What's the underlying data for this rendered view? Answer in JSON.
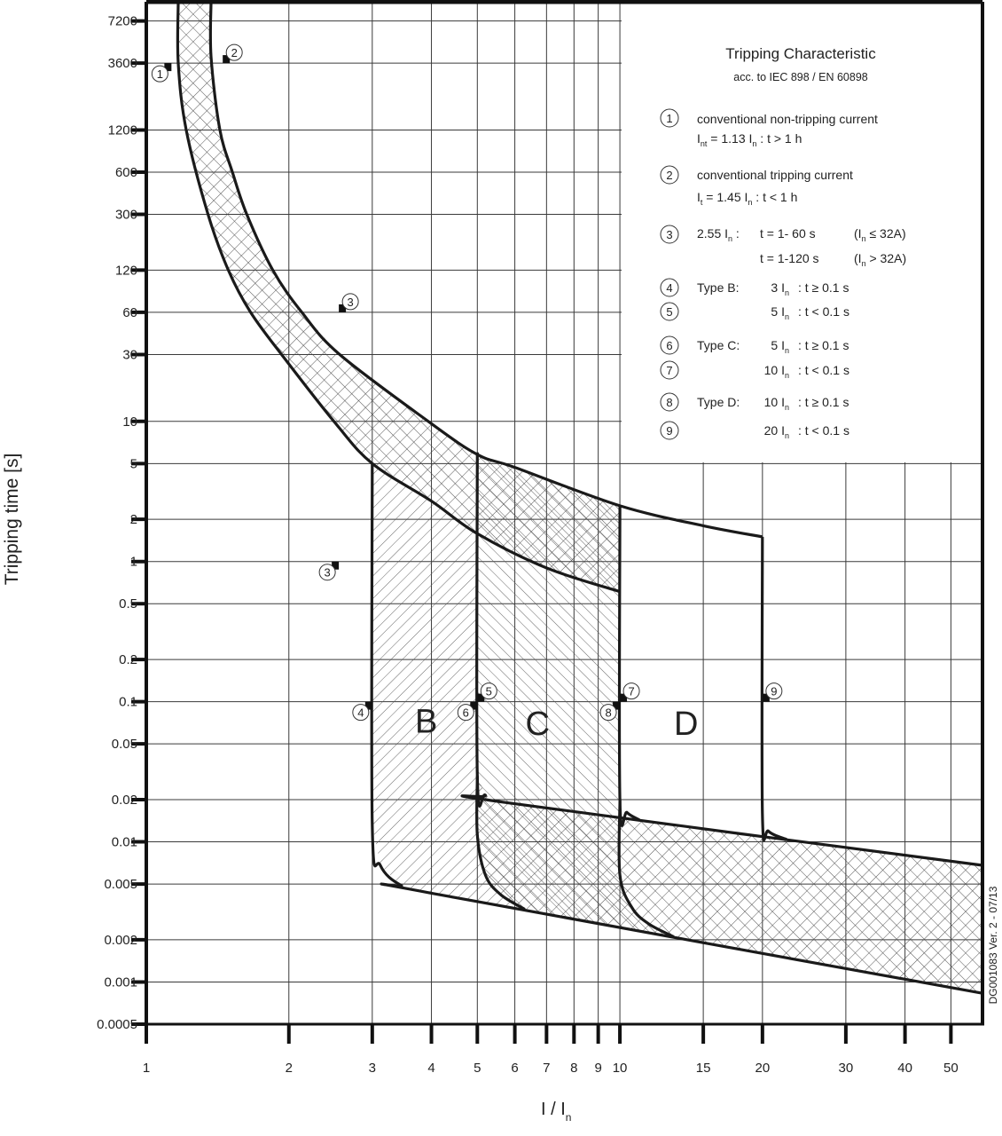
{
  "chart_data": {
    "type": "line",
    "xlabel": "I / I",
    "xlabel_sub": "n",
    "ylabel": "Tripping time [s]",
    "xscale": "log",
    "yscale": "log",
    "xlim": [
      1,
      58.3
    ],
    "ylim": [
      0.0005,
      9860
    ],
    "grid": true,
    "xticks": [
      {
        "v": 1,
        "label": "1"
      },
      {
        "v": 2,
        "label": "2"
      },
      {
        "v": 3,
        "label": "3"
      },
      {
        "v": 4,
        "label": "4"
      },
      {
        "v": 5,
        "label": "5"
      },
      {
        "v": 6,
        "label": "6"
      },
      {
        "v": 7,
        "label": "7"
      },
      {
        "v": 8,
        "label": "8"
      },
      {
        "v": 9,
        "label": "9"
      },
      {
        "v": 10,
        "label": "10"
      },
      {
        "v": 15,
        "label": "15"
      },
      {
        "v": 20,
        "label": "20"
      },
      {
        "v": 30,
        "label": "30"
      },
      {
        "v": 40,
        "label": "40"
      },
      {
        "v": 50,
        "label": "50"
      }
    ],
    "yticks": [
      {
        "v": 7200,
        "label": "7200"
      },
      {
        "v": 3600,
        "label": "3600"
      },
      {
        "v": 1200,
        "label": "1200"
      },
      {
        "v": 600,
        "label": "600"
      },
      {
        "v": 300,
        "label": "300"
      },
      {
        "v": 120,
        "label": "120"
      },
      {
        "v": 60,
        "label": "60"
      },
      {
        "v": 30,
        "label": "30"
      },
      {
        "v": 10,
        "label": "10"
      },
      {
        "v": 5,
        "label": "5"
      },
      {
        "v": 2,
        "label": "2"
      },
      {
        "v": 1,
        "label": "1"
      },
      {
        "v": 0.5,
        "label": "0.5"
      },
      {
        "v": 0.2,
        "label": "0.2"
      },
      {
        "v": 0.1,
        "label": "0.1"
      },
      {
        "v": 0.05,
        "label": "0.05"
      },
      {
        "v": 0.02,
        "label": "0.02"
      },
      {
        "v": 0.01,
        "label": "0.01"
      },
      {
        "v": 0.005,
        "label": "0.005"
      },
      {
        "v": 0.002,
        "label": "0.002"
      },
      {
        "v": 0.001,
        "label": "0.001"
      },
      {
        "v": 0.0005,
        "label": "0.0005"
      }
    ],
    "curves": [
      {
        "id": "thermal-upper",
        "points": [
          [
            1.37,
            9860
          ],
          [
            1.37,
            4000
          ],
          [
            1.43,
            1200
          ],
          [
            1.52,
            600
          ],
          [
            1.63,
            300
          ],
          [
            1.85,
            120
          ],
          [
            2.13,
            60
          ],
          [
            2.56,
            30
          ],
          [
            3.94,
            10
          ],
          [
            5,
            5.8
          ],
          [
            6,
            4.7
          ],
          [
            10,
            2.5
          ],
          [
            15,
            1.8
          ],
          [
            20,
            1.5
          ]
        ]
      },
      {
        "id": "thermal-lower",
        "points": [
          [
            1.168,
            9860
          ],
          [
            1.168,
            3600
          ],
          [
            1.214,
            1200
          ],
          [
            1.35,
            300
          ],
          [
            1.49,
            120
          ],
          [
            1.66,
            60
          ],
          [
            1.93,
            30
          ],
          [
            2.49,
            10
          ],
          [
            3,
            5
          ],
          [
            4,
            2.7
          ],
          [
            5,
            1.58
          ],
          [
            7,
            0.9
          ],
          [
            10,
            0.61
          ]
        ]
      },
      {
        "id": "type-b-boundary",
        "points": [
          [
            3,
            5
          ],
          [
            3,
            0.0134
          ],
          [
            3.12,
            0.0068
          ],
          [
            3.45,
            0.0049
          ],
          [
            4,
            0.0043
          ],
          [
            58.3,
            0.00083
          ]
        ]
      },
      {
        "id": "type-c-upper",
        "points": [
          [
            5,
            6
          ],
          [
            5,
            0.0295
          ],
          [
            5.2,
            0.0215
          ],
          [
            5.66,
            0.0192
          ],
          [
            58.3,
            0.0068
          ]
        ]
      },
      {
        "id": "type-c-lower",
        "points": [
          [
            5,
            0.0295
          ],
          [
            5,
            0.0112
          ],
          [
            5.2,
            0.0058
          ],
          [
            5.6,
            0.0042
          ],
          [
            6.3,
            0.0033
          ]
        ]
      },
      {
        "id": "type-d-upper",
        "points": [
          [
            10,
            2.5
          ],
          [
            10,
            0.0198
          ],
          [
            10.35,
            0.0162
          ],
          [
            11,
            0.0143
          ]
        ]
      },
      {
        "id": "type-d-lower",
        "points": [
          [
            10,
            0.0198
          ],
          [
            10,
            0.0058
          ],
          [
            10.6,
            0.0034
          ],
          [
            11.5,
            0.0026
          ],
          [
            13,
            0.0021
          ]
        ]
      },
      {
        "id": "type-d-right",
        "points": [
          [
            20,
            1.5
          ],
          [
            20,
            0.0158
          ],
          [
            20.6,
            0.0119
          ],
          [
            22.5,
            0.0104
          ]
        ]
      }
    ],
    "regions": [
      {
        "id": "thermal-band",
        "hatch": "cross",
        "points": [
          [
            1.37,
            9860
          ],
          [
            1.37,
            4000
          ],
          [
            1.43,
            1200
          ],
          [
            1.52,
            600
          ],
          [
            1.63,
            300
          ],
          [
            1.85,
            120
          ],
          [
            2.13,
            60
          ],
          [
            2.56,
            30
          ],
          [
            3.94,
            10
          ],
          [
            5,
            5.8
          ],
          [
            6,
            4.7
          ],
          [
            10,
            2.5
          ],
          [
            10,
            0.61
          ],
          [
            7,
            0.9
          ],
          [
            5,
            1.58
          ],
          [
            4,
            2.7
          ],
          [
            3,
            5
          ],
          [
            2.49,
            10
          ],
          [
            1.93,
            30
          ],
          [
            1.66,
            60
          ],
          [
            1.49,
            120
          ],
          [
            1.35,
            300
          ],
          [
            1.214,
            1200
          ],
          [
            1.168,
            3600
          ],
          [
            1.168,
            9860
          ]
        ]
      },
      {
        "id": "type-b-zone",
        "hatch": "forward",
        "points": [
          [
            3,
            5
          ],
          [
            4,
            2.7
          ],
          [
            5,
            1.58
          ],
          [
            5,
            0.0112
          ],
          [
            5.2,
            0.0058
          ],
          [
            5.6,
            0.0042
          ],
          [
            6.3,
            0.0033
          ],
          [
            4,
            0.0043
          ],
          [
            3.45,
            0.0049
          ],
          [
            3.12,
            0.0068
          ],
          [
            3,
            0.0134
          ]
        ]
      },
      {
        "id": "type-c-zone",
        "hatch": "back",
        "points": [
          [
            5,
            5.8
          ],
          [
            6,
            4.7
          ],
          [
            10,
            2.5
          ],
          [
            10,
            0.0058
          ],
          [
            10.6,
            0.0034
          ],
          [
            11.5,
            0.0026
          ],
          [
            13,
            0.0021
          ],
          [
            6.3,
            0.0033
          ],
          [
            5.6,
            0.0042
          ],
          [
            5.2,
            0.0058
          ],
          [
            5,
            0.0112
          ]
        ]
      },
      {
        "id": "instantaneous-band",
        "hatch": "cross",
        "points": [
          [
            5,
            0.0295
          ],
          [
            5.2,
            0.0215
          ],
          [
            5.66,
            0.0192
          ],
          [
            58.3,
            0.0068
          ],
          [
            58.3,
            0.00083
          ],
          [
            6.3,
            0.0033
          ],
          [
            5.6,
            0.0042
          ],
          [
            5.2,
            0.0058
          ],
          [
            5,
            0.0112
          ]
        ]
      }
    ],
    "zone_labels": [
      {
        "label": "B",
        "x": 3.9,
        "y": 0.06
      },
      {
        "label": "C",
        "x": 6.7,
        "y": 0.058
      },
      {
        "label": "D",
        "x": 13.8,
        "y": 0.058
      }
    ],
    "annotations": [
      {
        "label": "1",
        "x": 1.13,
        "y": 3600,
        "side": "lower-left"
      },
      {
        "label": "2",
        "x": 1.45,
        "y": 3600,
        "side": "upper-right"
      },
      {
        "label": "3",
        "x": 2.55,
        "y": 60,
        "side": "upper-right"
      },
      {
        "label": "3",
        "x": 2.55,
        "y": 1,
        "side": "lower-left"
      },
      {
        "label": "4",
        "x": 3,
        "y": 0.1,
        "side": "lower-left"
      },
      {
        "label": "5",
        "x": 5,
        "y": 0.1,
        "side": "upper-right"
      },
      {
        "label": "6",
        "x": 5,
        "y": 0.1,
        "side": "lower-left"
      },
      {
        "label": "7",
        "x": 10,
        "y": 0.1,
        "side": "upper-right"
      },
      {
        "label": "8",
        "x": 10,
        "y": 0.1,
        "side": "lower-left"
      },
      {
        "label": "9",
        "x": 20,
        "y": 0.1,
        "side": "upper-right"
      }
    ],
    "colors": {
      "line": "#1a1a1a",
      "grid": "#3a3a3a",
      "hatch": "#555555",
      "text": "#222222"
    }
  },
  "legend": {
    "title": "Tripping Characteristic",
    "subtitle": "acc. to IEC 898 / EN 60898",
    "items": [
      {
        "num": "1",
        "text": "conventional non-tripping current",
        "sym": "I",
        "sym_sub": "nt",
        "rel": " = 1.13 I",
        "rel_sub": "n",
        "cond": " :  t > 1 h"
      },
      {
        "num": "2",
        "text": "conventional tripping current",
        "sym": "I",
        "sym_sub": "t",
        "rel": " = 1.45 I",
        "rel_sub": "n",
        "cond": " :  t < 1 h"
      },
      {
        "num": "3",
        "mult": "2.55 I",
        "mult_sub": "n",
        "sep": " :",
        "t1": "t = 1- 60 s",
        "c1": "(I",
        "c1_sub": "n",
        "c1_rest": " ≤ 32A)",
        "t2": "t = 1-120 s",
        "c2": "(I",
        "c2_sub": "n",
        "c2_rest": " > 32A)"
      },
      {
        "num": "4",
        "type": "Type B:",
        "mult": "3 I",
        "mult_sub": "n",
        "cond": ": t ≥ 0.1 s"
      },
      {
        "num": "5",
        "type": "",
        "mult": "5 I",
        "mult_sub": "n",
        "cond": ": t < 0.1 s"
      },
      {
        "num": "6",
        "type": "Type C:",
        "mult": "5 I",
        "mult_sub": "n",
        "cond": ": t ≥ 0.1 s"
      },
      {
        "num": "7",
        "type": "",
        "mult": "10 I",
        "mult_sub": "n",
        "cond": ": t < 0.1 s"
      },
      {
        "num": "8",
        "type": "Type D:",
        "mult": "10 I",
        "mult_sub": "n",
        "cond": ": t ≥ 0.1 s"
      },
      {
        "num": "9",
        "type": "",
        "mult": "20 I",
        "mult_sub": "n",
        "cond": ": t < 0.1 s"
      }
    ]
  },
  "doc_code": "DG001083 Ver. 2 - 07/13"
}
